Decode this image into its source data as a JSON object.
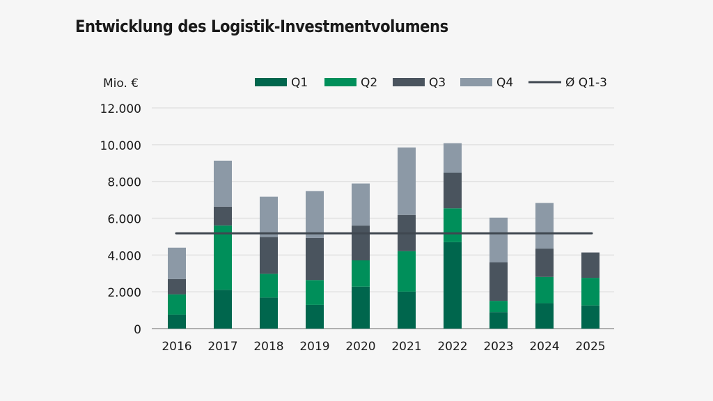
{
  "chart_data": {
    "type": "bar",
    "stacked": true,
    "title": "Entwicklung des Logistik-Investmentvolumens",
    "ylabel": "Mio. €",
    "ylim": [
      0,
      12000
    ],
    "yticks": [
      "0",
      "2.000",
      "4.000",
      "6.000",
      "8.000",
      "10.000",
      "12.000"
    ],
    "ytick_values": [
      0,
      2000,
      4000,
      6000,
      8000,
      10000,
      12000
    ],
    "grid": true,
    "legend_position": "top",
    "categories": [
      "2016",
      "2017",
      "2018",
      "2019",
      "2020",
      "2021",
      "2022",
      "2023",
      "2024",
      "2025"
    ],
    "series": [
      {
        "name": "Q1",
        "color": "#00664d",
        "values": [
          760,
          2110,
          1690,
          1290,
          2280,
          2010,
          4700,
          900,
          1380,
          1260
        ]
      },
      {
        "name": "Q2",
        "color": "#008f5a",
        "values": [
          1100,
          3500,
          1290,
          1350,
          1430,
          2200,
          1840,
          610,
          1430,
          1500
        ]
      },
      {
        "name": "Q3",
        "color": "#4a545e",
        "values": [
          830,
          1020,
          2000,
          2290,
          1890,
          1970,
          1940,
          2100,
          1540,
          1380
        ]
      },
      {
        "name": "Q4",
        "color": "#8c99a6",
        "values": [
          1710,
          2500,
          2190,
          2550,
          2290,
          3670,
          1600,
          2420,
          2480,
          null
        ]
      }
    ],
    "reference_line": {
      "name": "Ø Q1-3",
      "color": "#3f4750",
      "value": 5180
    }
  }
}
